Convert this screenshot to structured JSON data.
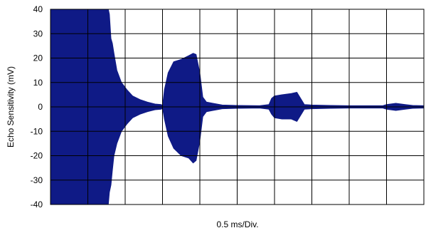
{
  "chart_data": {
    "type": "line",
    "title": "",
    "xlabel": "0.5 ms/Div.",
    "ylabel": "Echo Sensitivity (mV)",
    "ylim": [
      -40,
      40
    ],
    "yticks": [
      40,
      30,
      20,
      10,
      0,
      -10,
      -20,
      -30,
      -40
    ],
    "x_divisions": 10,
    "grid": true,
    "series": [
      {
        "x_div": [
          0,
          1.55,
          1.58,
          1.62,
          1.66,
          1.7,
          1.78,
          1.9,
          2.05,
          2.2,
          2.4,
          2.6,
          2.8,
          2.97,
          3.0,
          3.05,
          3.15,
          3.3,
          3.5,
          3.7,
          3.82,
          3.9,
          4.0,
          4.08,
          4.18,
          4.35,
          4.6,
          5.0,
          5.6,
          5.85,
          5.92,
          6.0,
          6.2,
          6.45,
          6.6,
          6.72,
          6.8,
          7.0,
          7.5,
          8.0,
          8.9,
          9.0,
          9.25,
          9.5,
          9.7,
          10.0
        ],
        "upper": [
          40,
          40,
          38,
          28,
          26,
          22,
          15,
          10,
          7,
          4.5,
          3,
          2,
          1.2,
          1,
          0.5,
          7,
          14,
          18.5,
          19.5,
          21,
          22,
          21.5,
          14,
          4,
          2,
          1.5,
          0.8,
          0.6,
          0.5,
          1,
          3.5,
          4.5,
          5,
          5.5,
          6,
          3,
          1,
          0.8,
          0.6,
          0.5,
          0.5,
          1,
          1.5,
          1,
          0.6,
          0.5
        ],
        "lower": [
          -40,
          -40,
          -35,
          -32,
          -26,
          -20,
          -15,
          -10,
          -7,
          -4.5,
          -3,
          -2,
          -1.2,
          -1,
          -0.5,
          -5,
          -12,
          -17,
          -20,
          -21,
          -23,
          -22,
          -14,
          -4,
          -2,
          -1.5,
          -0.8,
          -0.6,
          -0.5,
          -1,
          -3,
          -4.5,
          -5,
          -5,
          -6,
          -3,
          -1,
          -0.8,
          -0.6,
          -0.5,
          -0.5,
          -1,
          -1.5,
          -1,
          -0.6,
          -0.5
        ]
      }
    ]
  }
}
